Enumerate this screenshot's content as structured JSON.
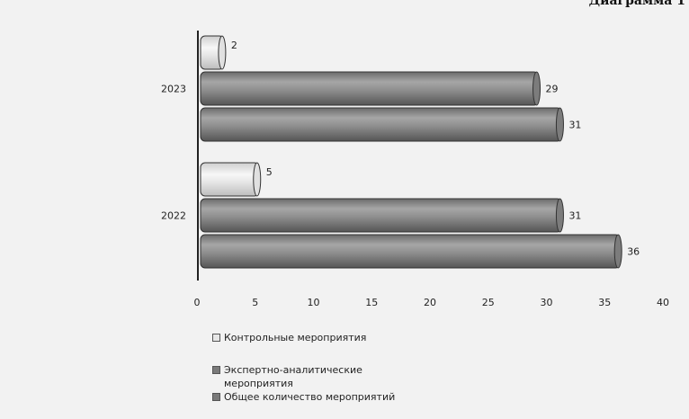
{
  "caption": "Диаграмма 1",
  "chart_data": {
    "type": "bar",
    "orientation": "horizontal",
    "categories": [
      "2023",
      "2022"
    ],
    "series": [
      {
        "name": "Контрольные мероприятия",
        "values": [
          2,
          5
        ],
        "color": "#e6e6e6"
      },
      {
        "name": "Экспертно-аналитические мероприятия",
        "values": [
          29,
          31
        ],
        "color": "#8a8a8a"
      },
      {
        "name": "Общее количество мероприятий",
        "values": [
          31,
          36
        ],
        "color": "#8a8a8a"
      }
    ],
    "xlim": [
      0,
      40
    ],
    "xticks": [
      0,
      5,
      10,
      15,
      20,
      25,
      30,
      35,
      40
    ],
    "legend_position": "bottom-left",
    "grid": false
  },
  "legend": {
    "items": [
      {
        "label": "Контрольные мероприятия",
        "color": "#e6e6e6"
      },
      {
        "label": "Экспертно-аналитические мероприятия",
        "color": "#7a7a7a"
      },
      {
        "label": "Общее количество мероприятий",
        "color": "#7a7a7a"
      }
    ]
  }
}
